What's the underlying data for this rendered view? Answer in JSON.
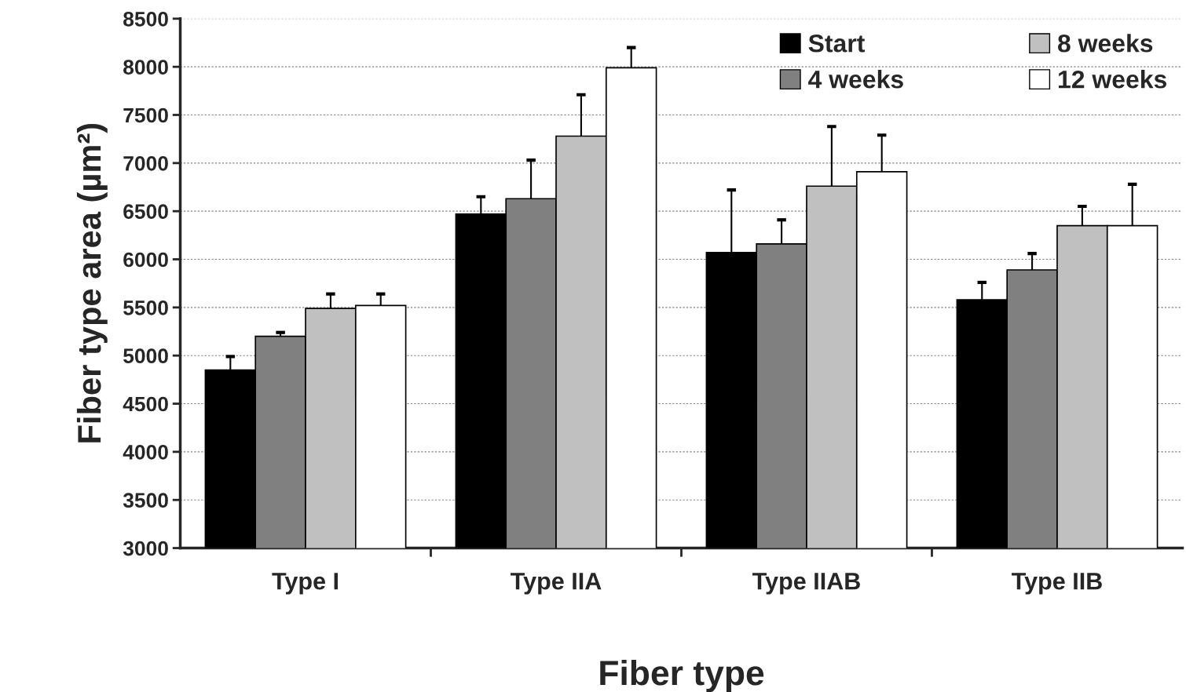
{
  "chart_data": {
    "type": "bar",
    "xlabel": "Fiber type",
    "ylabel": "Fiber type area (µm²)",
    "categories": [
      "Type I",
      "Type IIA",
      "Type IIAB",
      "Type IIB"
    ],
    "series": [
      {
        "name": "Start",
        "color": "#000000",
        "values": [
          4850,
          6470,
          6070,
          5580
        ],
        "errors": [
          [
            4850,
            4990
          ],
          [
            6470,
            6650
          ],
          [
            6070,
            6720
          ],
          [
            5580,
            5760
          ]
        ]
      },
      {
        "name": "4 weeks",
        "color": "#808080",
        "values": [
          5200,
          6630,
          6160,
          5890
        ],
        "errors": [
          [
            5200,
            5240
          ],
          [
            6630,
            7030
          ],
          [
            6160,
            6410
          ],
          [
            5890,
            6060
          ]
        ]
      },
      {
        "name": "8 weeks",
        "color": "#c0c0c0",
        "values": [
          5490,
          7280,
          6760,
          6350
        ],
        "errors": [
          [
            5490,
            5640
          ],
          [
            7280,
            7710
          ],
          [
            6760,
            7380
          ],
          [
            6350,
            6550
          ]
        ]
      },
      {
        "name": "12 weeks",
        "color": "#ffffff",
        "values": [
          5520,
          7990,
          6910,
          6350
        ],
        "errors": [
          [
            5520,
            5640
          ],
          [
            7990,
            8200
          ],
          [
            6910,
            7290
          ],
          [
            6350,
            6780
          ]
        ]
      }
    ],
    "ylim": [
      3000,
      8500
    ],
    "yticks": [
      3000,
      3500,
      4000,
      4500,
      5000,
      5500,
      6000,
      6500,
      7000,
      7500,
      8000,
      8500
    ],
    "grid": "y",
    "legend": "top right"
  }
}
